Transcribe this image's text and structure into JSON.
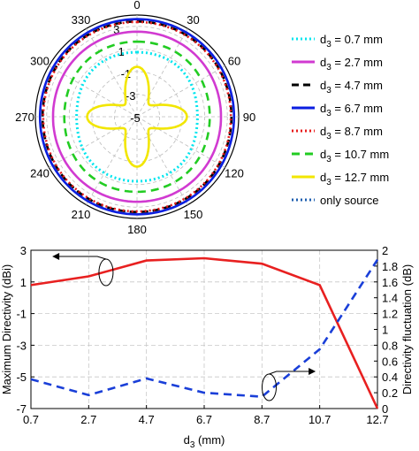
{
  "chart_data": [
    {
      "type": "polar-line",
      "angle_ticks": [
        "0",
        "30",
        "60",
        "90",
        "120",
        "150",
        "180",
        "210",
        "240",
        "270",
        "300",
        "330"
      ],
      "radial_ticks": [
        "3",
        "1",
        "-1",
        "-3",
        "-5"
      ],
      "radial_values": [
        3,
        1,
        -1,
        -3,
        -5
      ],
      "rlim": [
        -5,
        4
      ],
      "legend_placement": "right",
      "series": [
        {
          "name": "d",
          "sub": "3",
          "suffix": " = 0.7 mm",
          "color": "#00e5ee",
          "dash": "2,3",
          "width": 3,
          "kind": "ring",
          "r": 0.8,
          "amp": 0.6
        },
        {
          "name": "d",
          "sub": "3",
          "suffix": " = 2.7 mm",
          "color": "#d13ad1",
          "dash": "none",
          "width": 2.6,
          "kind": "ring",
          "r": 2.55,
          "amp": 0.15
        },
        {
          "name": "d",
          "sub": "3",
          "suffix": " = 4.7 mm",
          "color": "#000000",
          "dash": "8,5",
          "width": 2.6,
          "kind": "ring",
          "r": 3.45,
          "amp": 0.12
        },
        {
          "name": "d",
          "sub": "3",
          "suffix": " = 6.7 mm",
          "color": "#0a1ee0",
          "dash": "none",
          "width": 2.6,
          "kind": "ring",
          "r": 3.65,
          "amp": 0.08
        },
        {
          "name": "d",
          "sub": "3",
          "suffix": " = 8.7 mm",
          "color": "#e81c1c",
          "dash": "2,3",
          "width": 2.6,
          "kind": "ring",
          "r": 3.4,
          "amp": 0.12
        },
        {
          "name": "d",
          "sub": "3",
          "suffix": " = 10.7 mm",
          "color": "#22cc22",
          "dash": "9,6",
          "width": 2.6,
          "kind": "ring",
          "r": 1.7,
          "amp": 0.35
        },
        {
          "name": "d",
          "sub": "3",
          "suffix": " = 12.7 mm",
          "color": "#f2e600",
          "dash": "none",
          "width": 2.6,
          "kind": "flower",
          "r": -3.6,
          "amp": 1.45
        },
        {
          "name": "only source",
          "sub": "",
          "suffix": "",
          "color": "#1f5fb0",
          "dash": "2,3",
          "width": 2.6,
          "kind": "hidden",
          "r": 0,
          "amp": 0
        }
      ]
    },
    {
      "type": "line",
      "x": [
        0.7,
        2.7,
        4.7,
        6.7,
        8.7,
        10.7,
        12.7
      ],
      "x_ticks": [
        "0.7",
        "2.7",
        "4.7",
        "6.7",
        "8.7",
        "10.7",
        "12.7"
      ],
      "xlabel_main": "d",
      "xlabel_sub": "3",
      "xlabel_unit": " (mm)",
      "ylabel_left": "Maximum Directivity (dBi)",
      "ylabel_right": "Directivity fluctuation (dB)",
      "ylim_left": [
        -7,
        3
      ],
      "ylim_right": [
        0,
        2
      ],
      "y_ticks_left": [
        "-7",
        "-5",
        "-3",
        "-1",
        "1",
        "3"
      ],
      "y_ticks_right": [
        "0",
        "0.2",
        "0.4",
        "0.6",
        "0.8",
        "1",
        "1.2",
        "1.4",
        "1.6",
        "1.8",
        "2"
      ],
      "grid": true,
      "series": [
        {
          "axis": "left",
          "color": "#e82020",
          "dash": "none",
          "values": [
            0.8,
            1.35,
            2.35,
            2.5,
            2.15,
            0.8,
            -7.0
          ]
        },
        {
          "axis": "right",
          "color": "#1a3fd8",
          "dash": "9,6",
          "values": [
            0.37,
            0.17,
            0.38,
            0.2,
            0.15,
            0.75,
            1.88
          ]
        }
      ]
    }
  ]
}
